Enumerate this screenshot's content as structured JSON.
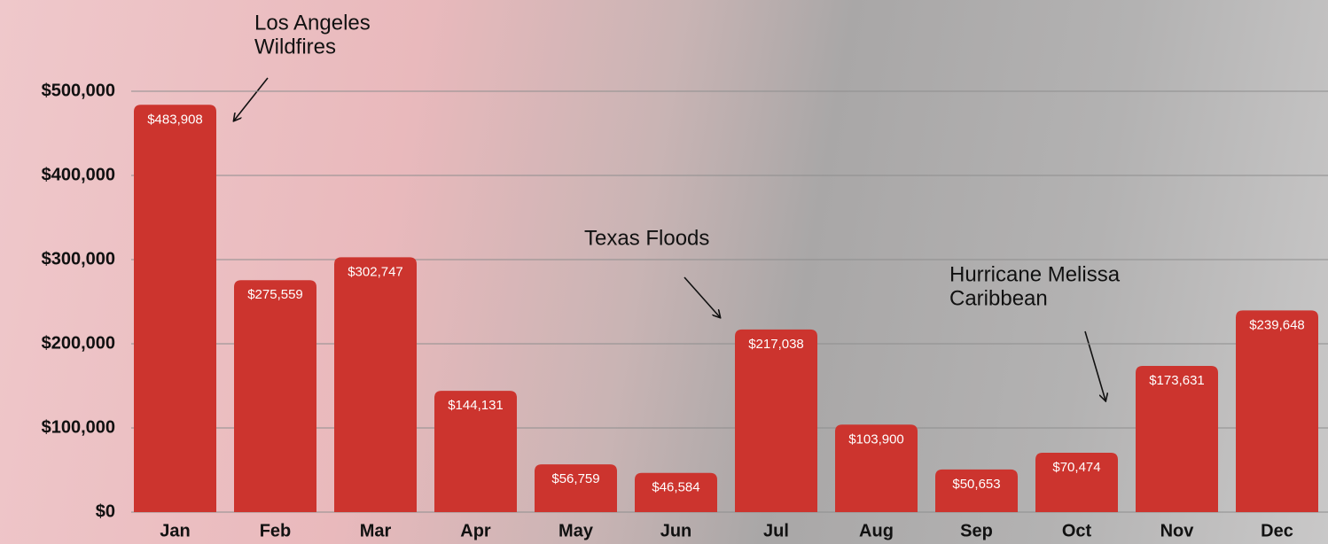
{
  "chart_data": {
    "type": "bar",
    "categories": [
      "Jan",
      "Feb",
      "Mar",
      "Apr",
      "May",
      "Jun",
      "Jul",
      "Aug",
      "Sep",
      "Oct",
      "Nov",
      "Dec"
    ],
    "values": [
      483908,
      275559,
      302747,
      144131,
      56759,
      46584,
      217038,
      103900,
      50653,
      70474,
      173631,
      239648
    ],
    "value_labels": [
      "$483,908",
      "$275,559",
      "$302,747",
      "$144,131",
      "$56,759",
      "$46,584",
      "$217,038",
      "$103,900",
      "$50,653",
      "$70,474",
      "$173,631",
      "$239,648"
    ],
    "color": "#cc342e",
    "ylim": [
      0,
      500000
    ],
    "yticks": [
      {
        "value": 0,
        "label": "$0"
      },
      {
        "value": 100000,
        "label": "$100,000"
      },
      {
        "value": 200000,
        "label": "$200,000"
      },
      {
        "value": 300000,
        "label": "$300,000"
      },
      {
        "value": 400000,
        "label": "$400,000"
      },
      {
        "value": 500000,
        "label": "$500,000"
      }
    ],
    "grid": true,
    "annotations": [
      {
        "lines": [
          "Los Angeles",
          "Wildfires"
        ]
      },
      {
        "lines": [
          "Texas Floods"
        ]
      },
      {
        "lines": [
          "Hurricane Melissa",
          "Caribbean"
        ]
      }
    ]
  }
}
